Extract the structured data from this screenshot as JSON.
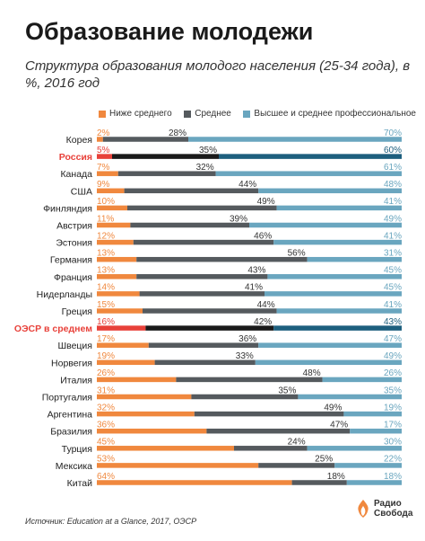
{
  "header": {
    "title": "Образование молодежи",
    "subtitle": "Структура образования молодого населения (25-34 года), в %, 2016 год"
  },
  "footer": {
    "source": "Источник: Education at a Glance, 2017, ОЭСР",
    "logo_line1": "Радио",
    "logo_line2": "Свобода"
  },
  "colors": {
    "below": "#f0883e",
    "secondary": "#555a5e",
    "higher": "#6aa6bf",
    "below_hl": "#e8413a",
    "secondary_hl": "#1a1a1a",
    "higher_hl": "#1d5f7e",
    "highlight_label": "#e8413a"
  },
  "chart_data": {
    "type": "bar",
    "stacked": true,
    "orientation": "horizontal",
    "title": "Образование молодежи",
    "subtitle": "Структура образования молодого населения (25-34 года), в %, 2016 год",
    "legend_position": "top",
    "xlim": [
      0,
      100
    ],
    "categories": [
      "Корея",
      "Россия",
      "Канада",
      "США",
      "Финляндия",
      "Австрия",
      "Эстония",
      "Германия",
      "Франция",
      "Нидерланды",
      "Греция",
      "ОЭСР в среднем",
      "Швеция",
      "Норвегия",
      "Италия",
      "Португалия",
      "Аргентина",
      "Бразилия",
      "Турция",
      "Мексика",
      "Китай"
    ],
    "highlighted": [
      "Россия",
      "ОЭСР в среднем"
    ],
    "series": [
      {
        "name": "Ниже среднего",
        "values": [
          2,
          5,
          7,
          9,
          10,
          11,
          12,
          13,
          13,
          14,
          15,
          16,
          17,
          19,
          26,
          31,
          32,
          36,
          45,
          53,
          64
        ]
      },
      {
        "name": "Среднее",
        "values": [
          28,
          35,
          32,
          44,
          49,
          39,
          46,
          56,
          43,
          41,
          44,
          42,
          36,
          33,
          48,
          35,
          49,
          47,
          24,
          25,
          18
        ]
      },
      {
        "name": "Высшее и среднее профессиональное",
        "values": [
          70,
          60,
          61,
          48,
          41,
          49,
          41,
          31,
          45,
          45,
          41,
          43,
          47,
          49,
          26,
          35,
          19,
          17,
          30,
          22,
          18
        ]
      }
    ]
  }
}
